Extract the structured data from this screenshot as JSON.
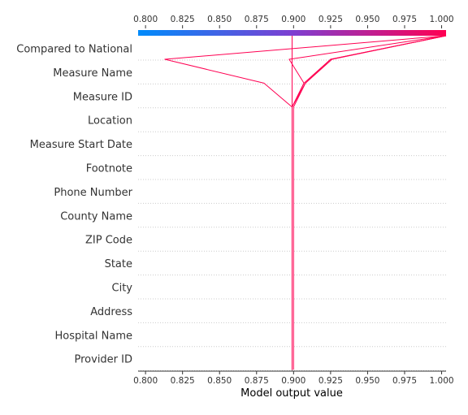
{
  "chart_data": {
    "type": "line",
    "subtype": "shap-decision-plot",
    "xlabel": "Model output value",
    "xlim": [
      0.795,
      1.003
    ],
    "xticks": [
      0.8,
      0.825,
      0.85,
      0.875,
      0.9,
      0.925,
      0.95,
      0.975,
      1.0
    ],
    "xtick_labels": [
      "0.800",
      "0.825",
      "0.850",
      "0.875",
      "0.900",
      "0.925",
      "0.950",
      "0.975",
      "1.000"
    ],
    "base_value": 0.899,
    "colorbar": {
      "min": 0.8,
      "max": 1.0,
      "low_color": "#008bfb",
      "mid_color": "#7d3fd1",
      "high_color": "#ff0052"
    },
    "features": [
      "Compared to National",
      "Measure Name",
      "Measure ID",
      "Location",
      "Measure Start Date",
      "Footnote",
      "Phone Number",
      "County Name",
      "ZIP Code",
      "State",
      "City",
      "Address",
      "Hospital Name",
      "Provider ID"
    ],
    "line_color": "#ff0052",
    "paths": [
      {
        "values": [
          1.003,
          0.813,
          0.88,
          0.899,
          0.899,
          0.899,
          0.899,
          0.899,
          0.899,
          0.899,
          0.899,
          0.899,
          0.899,
          0.899,
          0.899
        ]
      },
      {
        "values": [
          1.003,
          0.897,
          0.907,
          0.899,
          0.899,
          0.899,
          0.899,
          0.899,
          0.899,
          0.899,
          0.899,
          0.899,
          0.899,
          0.899,
          0.899
        ]
      },
      {
        "values": [
          1.003,
          0.925,
          0.907,
          0.899,
          0.899,
          0.899,
          0.899,
          0.899,
          0.899,
          0.899,
          0.899,
          0.899,
          0.899,
          0.899,
          0.899
        ]
      },
      {
        "values": [
          1.003,
          0.926,
          0.908,
          0.9,
          0.9,
          0.9,
          0.9,
          0.9,
          0.9,
          0.9,
          0.9,
          0.9,
          0.9,
          0.9,
          0.9
        ]
      },
      {
        "values": [
          1.003,
          0.925,
          0.908,
          0.899,
          0.899,
          0.899,
          0.899,
          0.899,
          0.899,
          0.899,
          0.899,
          0.899,
          0.899,
          0.899,
          0.899
        ]
      },
      {
        "values": [
          0.899,
          0.899,
          0.899,
          0.899,
          0.899,
          0.899,
          0.899,
          0.899,
          0.899,
          0.899,
          0.899,
          0.899,
          0.899,
          0.899,
          0.899
        ]
      }
    ]
  }
}
